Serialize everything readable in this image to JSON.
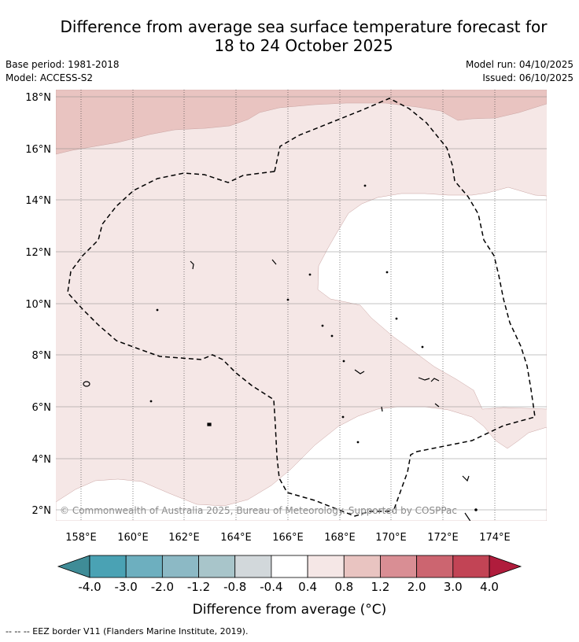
{
  "title_line1": "Difference from average sea surface temperature forecast for",
  "title_line2": "18 to 24 October 2025",
  "base_period": "Base period: 1981-2018",
  "model": "Model: ACCESS-S2",
  "model_run": "Model run: 04/10/2025",
  "issued": "Issued: 06/10/2025",
  "copyright": "© Commonwealth of Australia 2025, Bureau of Meteorology. Supported by COSPPac",
  "lon_labels": [
    "158°E",
    "160°E",
    "162°E",
    "164°E",
    "166°E",
    "168°E",
    "170°E",
    "172°E",
    "174°E"
  ],
  "lat_labels": [
    "18°N",
    "16°N",
    "14°N",
    "12°N",
    "10°N",
    "8°N",
    "6°N",
    "4°N",
    "2°N"
  ],
  "colorbar": {
    "colors": [
      "#3f8c97",
      "#4aa2b4",
      "#6dafbf",
      "#8cb9c5",
      "#a8c5ca",
      "#d2d8db",
      "#ffffff",
      "#f5e7e6",
      "#e9c4c1",
      "#d98e94",
      "#cc6570",
      "#c24455",
      "#b01c3c"
    ],
    "tick_labels": [
      "-4.0",
      "-3.0",
      "-2.0",
      "-1.2",
      "-0.8",
      "-0.4",
      "0.4",
      "0.8",
      "1.2",
      "2.0",
      "3.0",
      "4.0"
    ],
    "label": "Difference from average (°C)"
  },
  "footnote": "-- -- -- EEZ border V11 (Flanders Marine Institute, 2019)."
}
